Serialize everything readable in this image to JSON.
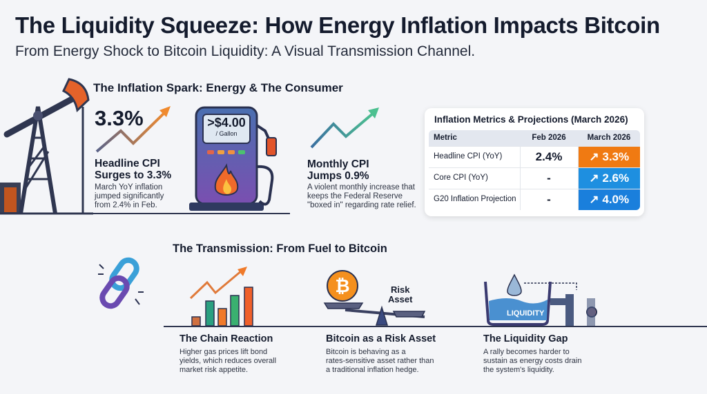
{
  "header": {
    "title": "The Liquidity Squeeze: How Energy Inflation Impacts Bitcoin",
    "subtitle": "From Energy Shock to Bitcoin Liquidity: A Visual Transmission Channel."
  },
  "spark": {
    "heading": "The Inflation Spark: Energy & The Consumer",
    "headline_value": "3.3%",
    "headline_title_1": "Headline CPI",
    "headline_title_2": "Surges to 3.3%",
    "headline_desc": [
      "March YoY inflation",
      "jumped significantly",
      "from 2.4% in Feb."
    ],
    "pump_price": ">$4.00",
    "pump_unit": "/ Gallon",
    "monthly_title_1": "Monthly CPI",
    "monthly_title_2": "Jumps 0.9%",
    "monthly_desc": [
      "A violent monthly increase that",
      "keeps the Federal Reserve",
      "\"boxed in\" regarding rate relief."
    ]
  },
  "table": {
    "title": "Inflation Metrics & Projections (March 2026)",
    "columns": [
      "Metric",
      "Feb 2026",
      "March 2026"
    ],
    "rows": [
      {
        "metric": "Headline CPI (YoY)",
        "feb": "2.4%",
        "march": "3.3%",
        "color": "#f07a12"
      },
      {
        "metric": "Core CPI (YoY)",
        "feb": "-",
        "march": "2.6%",
        "color": "#1e8fe0"
      },
      {
        "metric": "G20 Inflation Projection",
        "feb": "-",
        "march": "4.0%",
        "color": "#1a7fdc"
      }
    ],
    "trend_icon": "trending-up-icon"
  },
  "transmission": {
    "heading": "The Transmission: From Fuel to Bitcoin",
    "items": [
      {
        "title": "The Chain Reaction",
        "desc": [
          "Higher gas prices lift bond",
          "yields, which reduces overall",
          "market risk appetite."
        ]
      },
      {
        "title": "Bitcoin as a Risk Asset",
        "desc": [
          "Bitcoin is behaving as a",
          "rates-sensitive asset rather than",
          "a traditional inflation hedge."
        ],
        "scale_label_1": "Risk",
        "scale_label_2": "Asset"
      },
      {
        "title": "The Liquidity Gap",
        "desc": [
          "A rally becomes harder to",
          "sustain as energy costs drain",
          "the system's liquidity."
        ],
        "tank_label": "LIQUIDITY"
      }
    ]
  }
}
